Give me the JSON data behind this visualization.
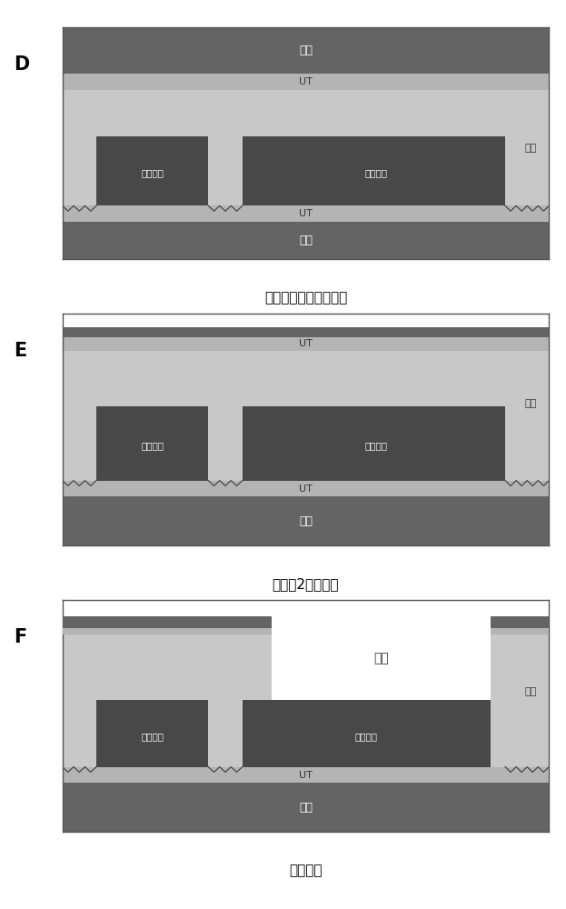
{
  "fig_width": 6.23,
  "fig_height": 10.0,
  "bg_color": "#ffffff",
  "carrier_color": "#646464",
  "ut_color": "#b4b4b4",
  "resin_color": "#c8c8c8",
  "circuit_color": "#484848",
  "border_color": "#555555",
  "text_dark": "#333333",
  "text_white": "#ffffff",
  "laser_color": "#ffffff",
  "panel_labels": [
    "D",
    "E",
    "F"
  ],
  "captions": [
    "积层树脂及附载体铜箔",
    "露出第2层载体箔",
    "激光开孔"
  ],
  "resin_label": "树脂",
  "ut_label": "UT",
  "carrier_label": "载体",
  "circuit_label": "电路镀层",
  "laser_label": "激光"
}
